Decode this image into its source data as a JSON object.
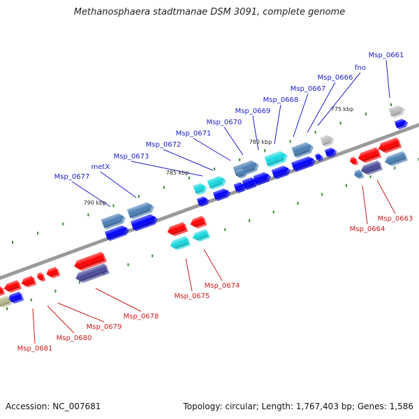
{
  "title": "Methanosphaera stadtmanae DSM 3091, complete genome",
  "footer": {
    "accession": "Accession: NC_007681",
    "summary": "Topology: circular; Length: 1,767,403 bp; Genes: 1,586"
  },
  "colors": {
    "backbone": "#8c8c8c",
    "tick": "#2e8b2e",
    "label_forward": "#1a1acc",
    "label_reverse": "#cc1a1a",
    "gene_red": "#ff0000",
    "gene_blue": "#0000ff",
    "gene_steel": "#4a7fb5",
    "gene_cyan": "#18d8e0",
    "gene_grey": "#bdbdbd",
    "gene_navy": "#4a4a9a",
    "gene_olive": "#b7b78a"
  },
  "scale_labels": [
    "775 kbp",
    "780 kbp",
    "785 kbp",
    "790 kbp"
  ],
  "gene_labels_forward": [
    "Msp_0661",
    "fno",
    "Msp_0666",
    "Msp_0667",
    "Msp_0668",
    "Msp_0669",
    "Msp_0670",
    "Msp_0671",
    "Msp_0672",
    "Msp_0673",
    "metX",
    "Msp_0677"
  ],
  "gene_labels_reverse": [
    "Msp_0663",
    "Msp_0664",
    "Msp_0674",
    "Msp_0675",
    "Msp_0678",
    "Msp_0679",
    "Msp_0680",
    "Msp_0681"
  ]
}
